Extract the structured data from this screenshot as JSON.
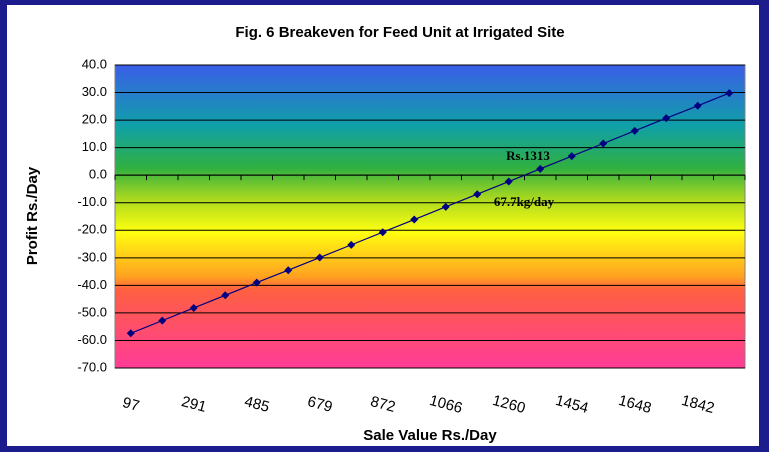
{
  "chart_data": {
    "type": "line",
    "title": "Fig. 6 Breakeven for Feed Unit at Irrigated Site",
    "x_label": "Sale Value Rs./Day",
    "y_label": "Profit Rs./Day",
    "categories": [
      "97",
      null,
      "291",
      null,
      "485",
      null,
      "679",
      null,
      "872",
      null,
      "1066",
      null,
      "1260",
      null,
      "1454",
      null,
      "1648",
      null,
      "1842",
      null
    ],
    "series": [
      {
        "name": "Profit",
        "color": "#000080",
        "values": [
          -57.4,
          -52.8,
          -48.2,
          -43.6,
          -39.0,
          -34.5,
          -29.9,
          -25.3,
          -20.7,
          -16.1,
          -11.5,
          -6.9,
          -2.3,
          2.3,
          6.9,
          11.5,
          16.1,
          20.7,
          25.2,
          29.8
        ]
      }
    ],
    "ylim": [
      -70,
      40
    ],
    "yticks": [
      {
        "value": -70,
        "label": "-70.0"
      },
      {
        "value": -60,
        "label": "-60.0"
      },
      {
        "value": -50,
        "label": "-50.0"
      },
      {
        "value": -40,
        "label": "-40.0"
      },
      {
        "value": -30,
        "label": "-30.0"
      },
      {
        "value": -20,
        "label": "-20.0"
      },
      {
        "value": -10,
        "label": "-10.0"
      },
      {
        "value": 0,
        "label": "0.0"
      },
      {
        "value": 10,
        "label": "10.0"
      },
      {
        "value": 20,
        "label": "20.0"
      },
      {
        "value": 30,
        "label": "30.0"
      },
      {
        "value": 40,
        "label": "40.0"
      }
    ],
    "grid": true,
    "annotations": [
      "Rs.1313",
      "67.7kg/day"
    ]
  }
}
